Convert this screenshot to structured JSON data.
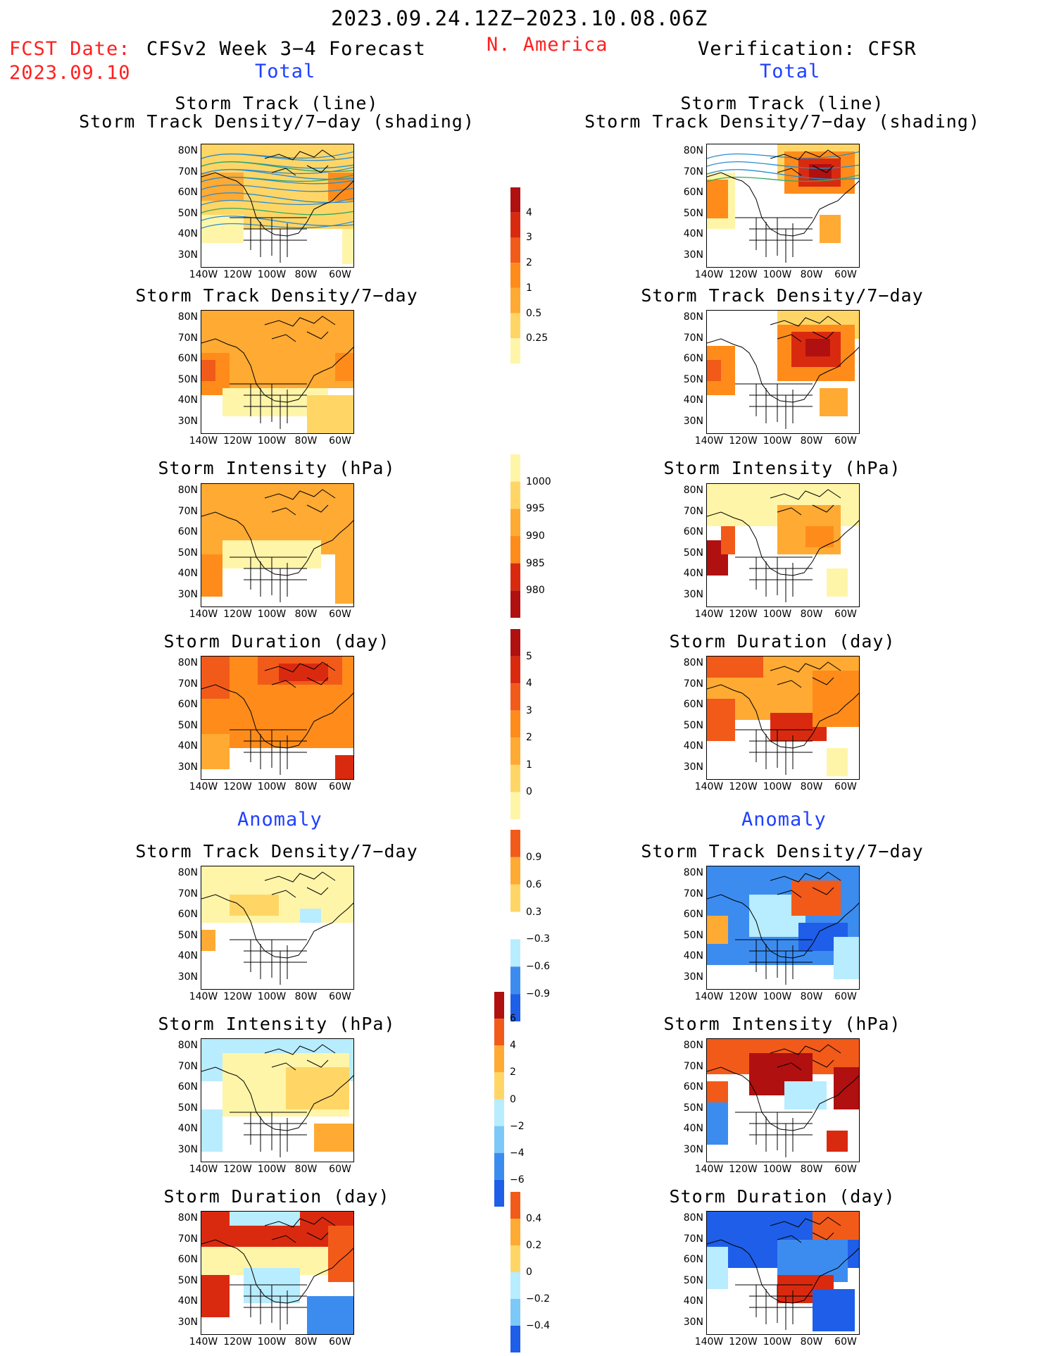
{
  "header": {
    "period": "2023.09.24.12Z−2023.10.08.06Z",
    "fcst_label": "FCST Date:",
    "fcst_date": "2023.09.10",
    "model": "CFSv2 Week 3−4 Forecast",
    "region": "N. America",
    "verification": "Verification: CFSR"
  },
  "sections": {
    "total_left": "Total",
    "total_right": "Total",
    "anomaly_left": "Anomaly",
    "anomaly_right": "Anomaly"
  },
  "panel_titles": {
    "track_line": "Storm Track (line)",
    "track_shading": "Storm Track Density/7−day (shading)",
    "density": "Storm Track Density/7−day",
    "intensity": "Storm Intensity (hPa)",
    "duration": "Storm Duration (day)"
  },
  "axes": {
    "lat_labels": [
      "80N",
      "70N",
      "60N",
      "50N",
      "40N",
      "30N"
    ],
    "lon_labels": [
      "140W",
      "120W",
      "100W",
      "80W",
      "60W"
    ]
  },
  "colorbars": {
    "density": {
      "labels": [
        "4",
        "3",
        "2",
        "1",
        "0.5",
        "0.25"
      ]
    },
    "intensity": {
      "labels": [
        "1000",
        "995",
        "990",
        "985",
        "980"
      ]
    },
    "duration": {
      "labels": [
        "5",
        "4",
        "3",
        "2",
        "1",
        "0"
      ]
    },
    "density_anom": {
      "labels": [
        "0.9",
        "0.6",
        "0.3",
        "−0.3",
        "−0.6",
        "−0.9"
      ]
    },
    "intensity_anom": {
      "labels": [
        "6",
        "4",
        "2",
        "0",
        "−2",
        "−4",
        "−6"
      ]
    },
    "duration_anom": {
      "labels": [
        "0.4",
        "0.2",
        "0",
        "−0.2",
        "−0.4"
      ]
    }
  },
  "colors": {
    "pale_yellow": "#fff5a8",
    "yellow": "#ffd666",
    "light_orange": "#ffaa33",
    "orange": "#ff8c1a",
    "red_orange": "#f25a1a",
    "red": "#d92a10",
    "dark_red": "#b01010",
    "light_blue": "#b8ecff",
    "mid_blue": "#7cc8f8",
    "blue": "#3c8cf0",
    "dark_blue": "#1e5ee8",
    "track_blue": "#2a8cd0",
    "track_green": "#30a860"
  }
}
